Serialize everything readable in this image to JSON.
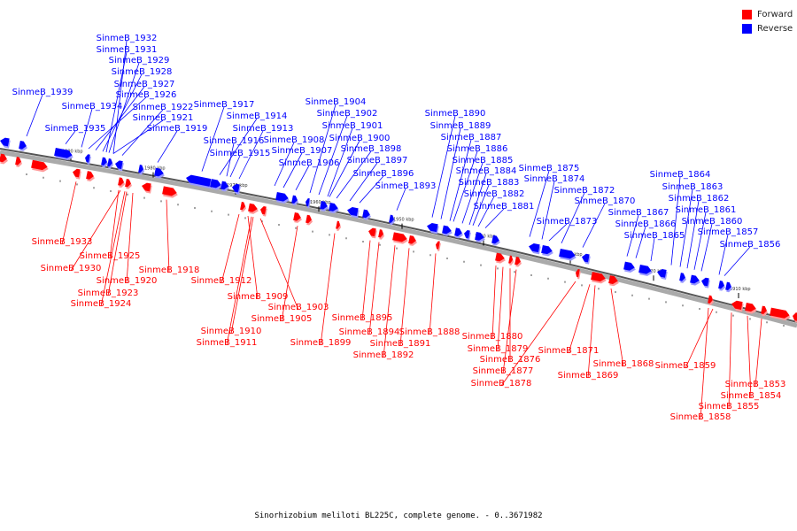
{
  "legend": {
    "forward_label": "Forward",
    "reverse_label": "Reverse",
    "forward_color": "#ff0000",
    "reverse_color": "#0000ff"
  },
  "caption": "Sinorhizobium meliloti BL225C, complete genome. - 0..3671982",
  "scale_ticks": [
    "1990 kbp",
    "1980 kbp",
    "1970 kbp",
    "1960 kbp",
    "1950 kbp",
    "1940 kbp",
    "1930 kbp",
    "1920 kbp",
    "1910 kbp"
  ],
  "genes_reverse": [
    "SinmeB_1932",
    "SinmeB_1931",
    "SinmeB_1929",
    "SinmeB_1928",
    "SinmeB_1927",
    "SinmeB_1926",
    "SinmeB_1939",
    "SinmeB_1934",
    "SinmeB_1922",
    "SinmeB_1921",
    "SinmeB_1917",
    "SinmeB_1914",
    "SinmeB_1935",
    "SinmeB_1919",
    "SinmeB_1913",
    "SinmeB_1916",
    "SinmeB_1915",
    "SinmeB_1904",
    "SinmeB_1902",
    "SinmeB_1901",
    "SinmeB_1900",
    "SinmeB_1908",
    "SinmeB_1907",
    "SinmeB_1906",
    "SinmeB_1898",
    "SinmeB_1897",
    "SinmeB_1896",
    "SinmeB_1893",
    "SinmeB_1890",
    "SinmeB_1889",
    "SinmeB_1887",
    "SinmeB_1886",
    "SinmeB_1885",
    "SinmeB_1884",
    "SinmeB_1883",
    "SinmeB_1882",
    "SinmeB_1881",
    "SinmeB_1875",
    "SinmeB_1874",
    "SinmeB_1872",
    "SinmeB_1870",
    "SinmeB_1873",
    "SinmeB_1867",
    "SinmeB_1866",
    "SinmeB_1865",
    "SinmeB_1864",
    "SinmeB_1863",
    "SinmeB_1862",
    "SinmeB_1861",
    "SinmeB_1860",
    "SinmeB_1857",
    "SinmeB_1856"
  ],
  "genes_forward": [
    "SinmeB_1933",
    "SinmeB_1925",
    "SinmeB_1930",
    "SinmeB_1920",
    "SinmeB_1923",
    "SinmeB_1924",
    "SinmeB_1918",
    "SinmeB_1912",
    "SinmeB_1909",
    "SinmeB_1903",
    "SinmeB_1905",
    "SinmeB_1910",
    "SinmeB_1911",
    "SinmeB_1895",
    "SinmeB_1899",
    "SinmeB_1894",
    "SinmeB_1888",
    "SinmeB_1891",
    "SinmeB_1892",
    "SinmeB_1880",
    "SinmeB_1879",
    "SinmeB_1876",
    "SinmeB_1877",
    "SinmeB_1878",
    "SinmeB_1871",
    "SinmeB_1868",
    "SinmeB_1869",
    "SinmeB_1859",
    "SinmeB_1853",
    "SinmeB_1854",
    "SinmeB_1855",
    "SinmeB_1858"
  ]
}
